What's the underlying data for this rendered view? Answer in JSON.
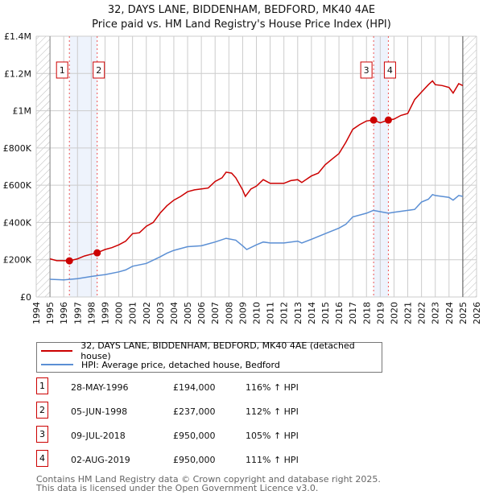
{
  "chart_data": {
    "type": "line",
    "title": "32, DAYS LANE, BIDDENHAM, BEDFORD, MK40 4AE",
    "subtitle": "Price paid vs. HM Land Registry's House Price Index (HPI)",
    "xlim": [
      1994,
      2026
    ],
    "ylim": [
      0,
      1400000
    ],
    "yticks": [
      {
        "v": 0,
        "label": "£0"
      },
      {
        "v": 200000,
        "label": "£200K"
      },
      {
        "v": 400000,
        "label": "£400K"
      },
      {
        "v": 600000,
        "label": "£600K"
      },
      {
        "v": 800000,
        "label": "£800K"
      },
      {
        "v": 1000000,
        "label": "£1M"
      },
      {
        "v": 1200000,
        "label": "£1.2M"
      },
      {
        "v": 1400000,
        "label": "£1.4M"
      }
    ],
    "xticks": [
      1994,
      1995,
      1996,
      1997,
      1998,
      1999,
      2000,
      2001,
      2002,
      2003,
      2004,
      2005,
      2006,
      2007,
      2008,
      2009,
      2010,
      2011,
      2012,
      2013,
      2014,
      2015,
      2016,
      2017,
      2018,
      2019,
      2020,
      2021,
      2022,
      2023,
      2024,
      2025,
      2026
    ],
    "grid": true,
    "series": [
      {
        "name": "32, DAYS LANE, BIDDENHAM, BEDFORD, MK40 4AE (detached house)",
        "color": "#cc0000",
        "x": [
          1995,
          1995.5,
          1996,
          1996.4,
          1997,
          1997.5,
          1998,
          1998.4,
          1999,
          1999.5,
          2000,
          2000.5,
          2001,
          2001.5,
          2002,
          2002.5,
          2003,
          2003.5,
          2004,
          2004.5,
          2005,
          2005.5,
          2006,
          2006.5,
          2007,
          2007.5,
          2007.8,
          2008.2,
          2008.5,
          2009,
          2009.2,
          2009.6,
          2010,
          2010.5,
          2011,
          2011.5,
          2012,
          2012.5,
          2013,
          2013.3,
          2014,
          2014.5,
          2015,
          2015.5,
          2016,
          2016.5,
          2017,
          2017.5,
          2018,
          2018.5,
          2019,
          2019.6,
          2020,
          2020.5,
          2021,
          2021.5,
          2022,
          2022.5,
          2022.8,
          2023,
          2023.5,
          2024,
          2024.3,
          2024.7,
          2025
        ],
        "y": [
          205000,
          195000,
          195000,
          194000,
          205000,
          220000,
          230000,
          237000,
          255000,
          265000,
          280000,
          300000,
          340000,
          345000,
          380000,
          400000,
          450000,
          490000,
          520000,
          540000,
          565000,
          575000,
          580000,
          585000,
          620000,
          640000,
          670000,
          665000,
          640000,
          575000,
          540000,
          580000,
          595000,
          630000,
          610000,
          610000,
          610000,
          625000,
          630000,
          615000,
          650000,
          665000,
          710000,
          740000,
          770000,
          830000,
          900000,
          925000,
          945000,
          950000,
          935000,
          950000,
          955000,
          975000,
          985000,
          1060000,
          1100000,
          1140000,
          1160000,
          1140000,
          1135000,
          1125000,
          1095000,
          1145000,
          1135000
        ]
      },
      {
        "name": "HPI: Average price, detached house, Bedford",
        "color": "#5b8fd4",
        "x": [
          1995,
          1996,
          1997,
          1998,
          1999,
          2000,
          2000.5,
          2001,
          2002,
          2003,
          2003.5,
          2004,
          2005,
          2006,
          2007,
          2007.8,
          2008.5,
          2009,
          2009.3,
          2010,
          2010.5,
          2011,
          2012,
          2013,
          2013.3,
          2014,
          2015,
          2016,
          2016.5,
          2017,
          2018,
          2018.5,
          2019,
          2019.6,
          2020,
          2021,
          2021.5,
          2022,
          2022.5,
          2022.8,
          2023,
          2024,
          2024.3,
          2024.7,
          2025
        ],
        "y": [
          95000,
          92000,
          98000,
          110000,
          120000,
          135000,
          145000,
          165000,
          180000,
          215000,
          235000,
          250000,
          270000,
          275000,
          295000,
          315000,
          305000,
          275000,
          255000,
          280000,
          295000,
          290000,
          290000,
          300000,
          290000,
          310000,
          340000,
          370000,
          390000,
          430000,
          450000,
          465000,
          458000,
          450000,
          455000,
          465000,
          470000,
          510000,
          525000,
          550000,
          545000,
          535000,
          520000,
          545000,
          540000
        ]
      }
    ],
    "sales": [
      {
        "id": "1",
        "x": 1996.41,
        "y": 194000,
        "date": "28-MAY-1996",
        "price": "£194,000",
        "hpi": "116% ↑ HPI"
      },
      {
        "id": "2",
        "x": 1998.43,
        "y": 237000,
        "date": "05-JUN-1998",
        "price": "£237,000",
        "hpi": "112% ↑ HPI"
      },
      {
        "id": "3",
        "x": 2018.52,
        "y": 950000,
        "date": "09-JUL-2018",
        "price": "£950,000",
        "hpi": "105% ↑ HPI"
      },
      {
        "id": "4",
        "x": 2019.59,
        "y": 950000,
        "date": "02-AUG-2019",
        "price": "£950,000",
        "hpi": "111% ↑ HPI"
      }
    ],
    "shaded_ranges": [
      [
        1996.41,
        1998.43
      ],
      [
        2018.52,
        2019.59
      ]
    ],
    "hatched_ranges": [
      [
        1994,
        1995
      ],
      [
        2025,
        2026
      ]
    ]
  },
  "footer": {
    "line1": "Contains HM Land Registry data © Crown copyright and database right 2025.",
    "line2": "This data is licensed under the Open Government Licence v3.0."
  }
}
